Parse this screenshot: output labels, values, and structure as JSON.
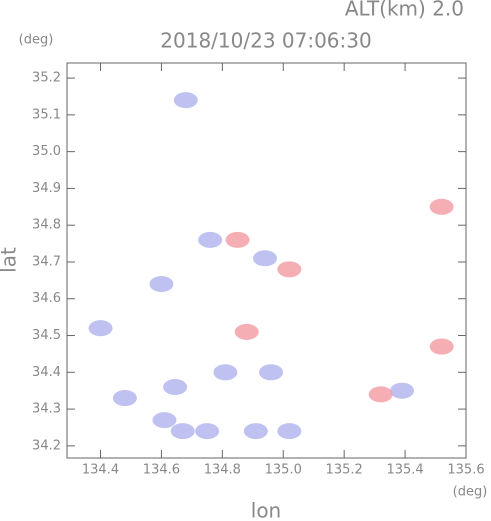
{
  "chart_data": {
    "type": "scatter",
    "header": "ALT(km) 2.0",
    "title": "2018/10/23 07:06:30",
    "y_unit": "(deg)",
    "x_unit": "(deg)",
    "x_label": "lon",
    "y_label": "lat",
    "xlim": [
      134.29,
      135.6
    ],
    "ylim": [
      34.167,
      35.241
    ],
    "xticks": [
      134.4,
      134.6,
      134.8,
      {
        "value": 135,
        "label": "135.0"
      },
      135.2,
      135.4,
      135.6
    ],
    "yticks": [
      34.2,
      34.3,
      34.4,
      34.5,
      34.6,
      34.7,
      34.8,
      34.9,
      {
        "value": 35,
        "label": "35.0"
      },
      35.1,
      35.2
    ],
    "grid": false,
    "series": [
      {
        "color": "#b4b6ee",
        "x": [
          134.4,
          134.48,
          134.645,
          134.61,
          134.67,
          134.75,
          134.81,
          134.96,
          135.02,
          134.91,
          134.76,
          134.94,
          134.6,
          135.39,
          134.68
        ],
        "values": [
          34.52,
          34.33,
          34.36,
          34.27,
          34.24,
          34.24,
          34.4,
          34.4,
          34.24,
          34.24,
          34.76,
          34.71,
          34.64,
          34.35,
          35.14
        ]
      },
      {
        "color": "#f4a0a8",
        "x": [
          134.88,
          134.85,
          135.52,
          135.52,
          135.32,
          135.02
        ],
        "values": [
          34.51,
          34.76,
          34.85,
          34.47,
          34.34,
          34.68
        ]
      }
    ]
  }
}
